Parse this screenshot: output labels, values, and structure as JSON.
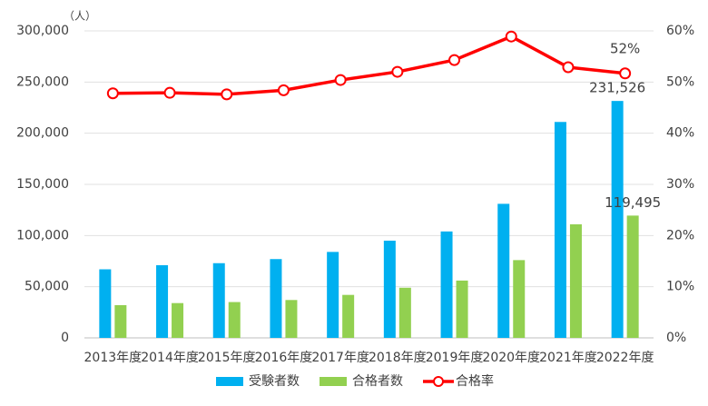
{
  "chart_data": {
    "type": "bar_line",
    "y_unit_label": "（人）",
    "categories": [
      "2013年度",
      "2014年度",
      "2015年度",
      "2016年度",
      "2017年度",
      "2018年度",
      "2019年度",
      "2020年度",
      "2021年度",
      "2022年度"
    ],
    "series": [
      {
        "name": "受験者数",
        "color": "#00b0f0",
        "type": "bar",
        "axis": "y",
        "values": [
          67000,
          71000,
          73000,
          77000,
          84000,
          95000,
          104000,
          131000,
          211000,
          231526
        ],
        "value_labels": [
          null,
          null,
          null,
          null,
          null,
          null,
          null,
          null,
          null,
          "231,526"
        ]
      },
      {
        "name": "合格者数",
        "color": "#92d050",
        "type": "bar",
        "axis": "y",
        "values": [
          32000,
          34000,
          35000,
          37000,
          42000,
          49000,
          56000,
          76000,
          111000,
          119495
        ],
        "value_labels": [
          null,
          null,
          null,
          null,
          null,
          null,
          null,
          null,
          null,
          "119,495"
        ]
      },
      {
        "name": "合格率",
        "color": "#ff0000",
        "type": "line",
        "axis": "y2",
        "values": [
          47.8,
          47.9,
          47.6,
          48.4,
          50.4,
          52.0,
          54.3,
          58.9,
          52.9,
          51.7
        ],
        "value_labels": [
          null,
          null,
          null,
          null,
          null,
          null,
          null,
          null,
          null,
          "52%"
        ]
      }
    ],
    "ylim": [
      0,
      300000
    ],
    "yticks": [
      0,
      {
        "value": 50000,
        "label": "50,000"
      },
      {
        "value": 100000,
        "label": "100,000"
      },
      {
        "value": 150000,
        "label": "150,000"
      },
      {
        "value": 200000,
        "label": "200,000"
      },
      {
        "value": 250000,
        "label": "250,000"
      },
      {
        "value": 300000,
        "label": "300,000"
      }
    ],
    "y2lim": [
      0,
      60
    ],
    "y2ticks": [
      {
        "value": 0,
        "label": "0%"
      },
      {
        "value": 10,
        "label": "10%"
      },
      {
        "value": 20,
        "label": "20%"
      },
      {
        "value": 30,
        "label": "30%"
      },
      {
        "value": 40,
        "label": "40%"
      },
      {
        "value": 50,
        "label": "50%"
      },
      {
        "value": 60,
        "label": "60%"
      }
    ],
    "grid": true,
    "legend": "bottom"
  }
}
